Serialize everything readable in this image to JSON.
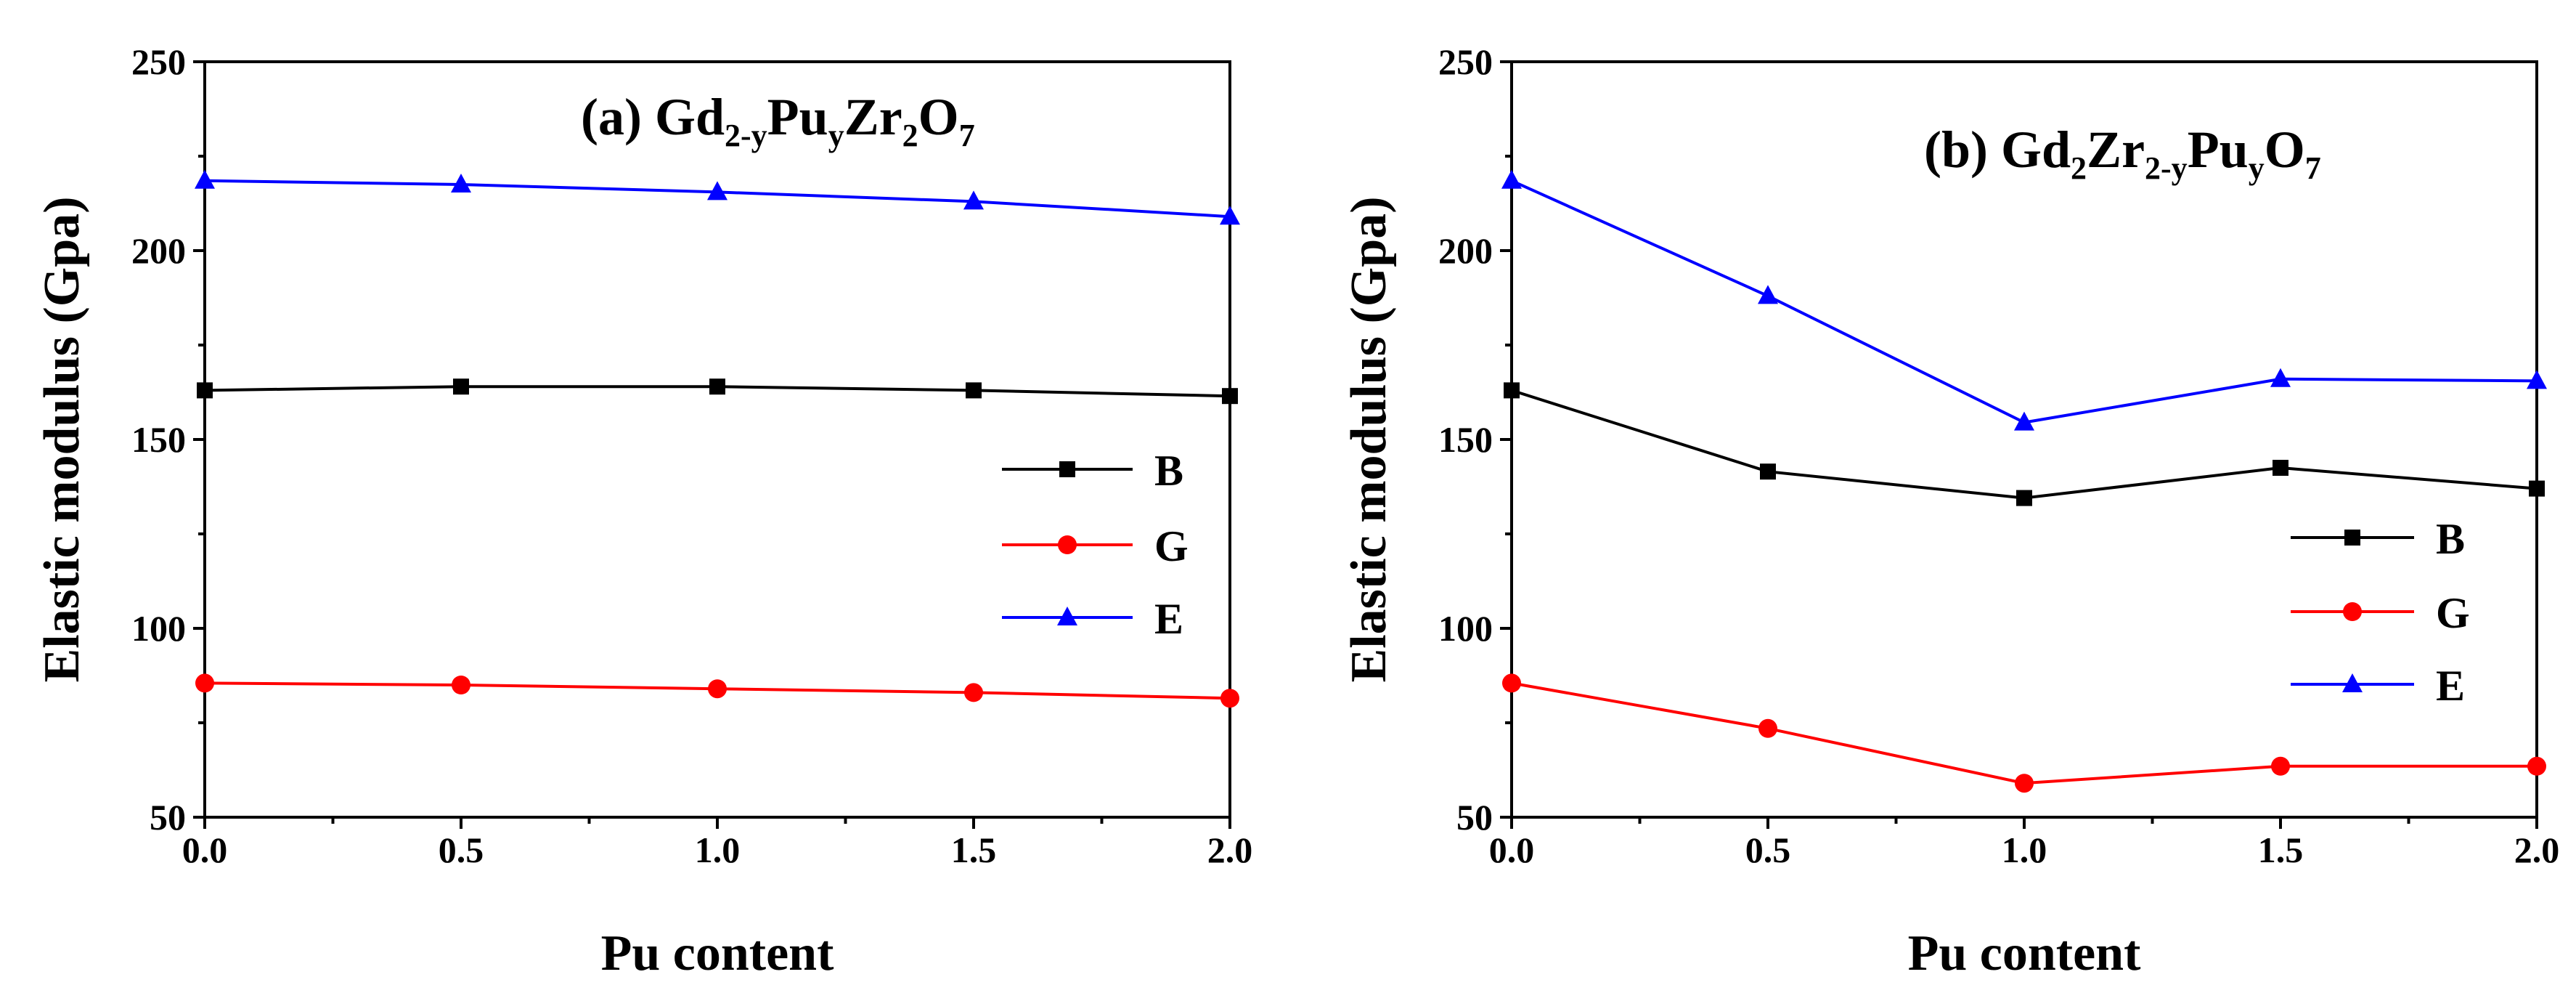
{
  "chart_data": [
    {
      "type": "line",
      "id": "a",
      "title": {
        "pre": "(a) Gd",
        "s1": "2-y",
        "m1": "Pu",
        "s2": "y",
        "m2": "Zr",
        "s3": "2",
        "m3": "O",
        "s4": "7"
      },
      "xlabel": "Pu content",
      "ylabel": "Elastic modulus (Gpa)",
      "xlim": [
        0,
        2
      ],
      "ylim": [
        50,
        250
      ],
      "xticks": [
        "0.0",
        "0.5",
        "1.0",
        "1.5",
        "2.0"
      ],
      "yticks": [
        "50",
        "100",
        "150",
        "200",
        "250"
      ],
      "x": [
        0,
        0.5,
        1.0,
        1.5,
        2.0
      ],
      "legend_position": "right",
      "series": [
        {
          "name": "B",
          "color": "#000000",
          "marker": "square",
          "values": [
            163,
            164,
            164,
            163,
            161.5
          ]
        },
        {
          "name": "G",
          "color": "#ff0000",
          "marker": "circle",
          "values": [
            85.5,
            85,
            84,
            83,
            81.5
          ]
        },
        {
          "name": "E",
          "color": "#0000ff",
          "marker": "triangle",
          "values": [
            218.5,
            217.5,
            215.5,
            213,
            209
          ]
        }
      ]
    },
    {
      "type": "line",
      "id": "b",
      "title": {
        "pre": "(b) Gd",
        "s1": "2",
        "m1": "Zr",
        "s2": "2-y",
        "m2": "Pu",
        "s3": "y",
        "m3": "O",
        "s4": "7"
      },
      "xlabel": "Pu content",
      "ylabel": "Elastic modulus (Gpa)",
      "xlim": [
        0,
        2
      ],
      "ylim": [
        50,
        250
      ],
      "xticks": [
        "0.0",
        "0.5",
        "1.0",
        "1.5",
        "2.0"
      ],
      "yticks": [
        "50",
        "100",
        "150",
        "200",
        "250"
      ],
      "x": [
        0,
        0.5,
        1.0,
        1.5,
        2.0
      ],
      "legend_position": "lower-right",
      "series": [
        {
          "name": "B",
          "color": "#000000",
          "marker": "square",
          "values": [
            163,
            141.5,
            134.5,
            142.5,
            137
          ]
        },
        {
          "name": "G",
          "color": "#ff0000",
          "marker": "circle",
          "values": [
            85.5,
            73.5,
            59,
            63.5,
            63.5
          ]
        },
        {
          "name": "E",
          "color": "#0000ff",
          "marker": "triangle",
          "values": [
            218.5,
            188,
            154.5,
            166,
            165.5
          ]
        }
      ]
    }
  ]
}
